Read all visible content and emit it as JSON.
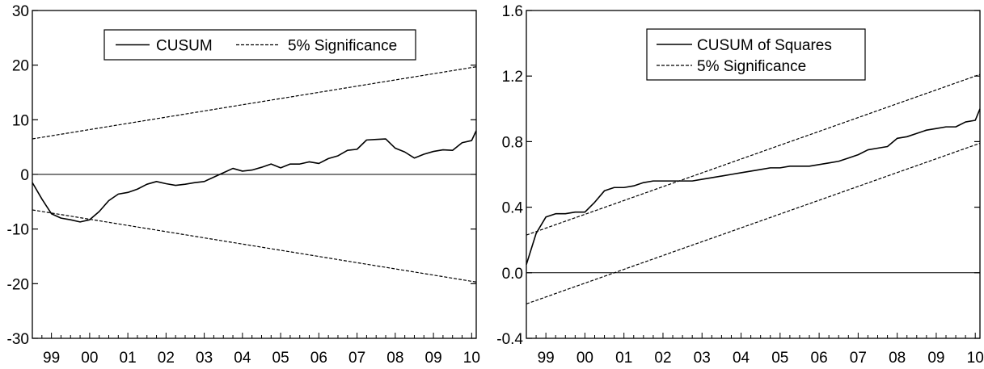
{
  "chart_data": [
    {
      "type": "line",
      "title": "",
      "xlabel": "",
      "ylabel": "",
      "x_range": [
        1998.5,
        2010.12
      ],
      "ylim": [
        -30,
        30
      ],
      "y_ticks": [
        30,
        20,
        10,
        0,
        -10,
        -20,
        -30
      ],
      "y_tick_labels": [
        "30",
        "20",
        "10",
        "0",
        "-10",
        "-20",
        "-30"
      ],
      "x_ticks": [
        1999,
        2000,
        2001,
        2002,
        2003,
        2004,
        2005,
        2006,
        2007,
        2008,
        2009,
        2010
      ],
      "x_tick_labels": [
        "99",
        "00",
        "01",
        "02",
        "03",
        "04",
        "05",
        "06",
        "07",
        "08",
        "09",
        "10"
      ],
      "zero_line": true,
      "grid": false,
      "legend_position": "top-center",
      "legend": [
        {
          "label": "CUSUM",
          "style": "solid"
        },
        {
          "label": "5% Significance",
          "style": "dashed"
        }
      ],
      "series": [
        {
          "name": "CUSUM",
          "style": "solid",
          "x": [
            1998.5,
            1998.75,
            1999.0,
            1999.25,
            1999.5,
            1999.75,
            2000.0,
            2000.25,
            2000.5,
            2000.75,
            2001.0,
            2001.25,
            2001.5,
            2001.75,
            2002.0,
            2002.25,
            2002.5,
            2002.75,
            2003.0,
            2003.25,
            2003.5,
            2003.75,
            2004.0,
            2004.25,
            2004.5,
            2004.75,
            2005.0,
            2005.25,
            2005.5,
            2005.75,
            2006.0,
            2006.25,
            2006.5,
            2006.75,
            2007.0,
            2007.25,
            2007.5,
            2007.75,
            2008.0,
            2008.25,
            2008.5,
            2008.75,
            2009.0,
            2009.25,
            2009.5,
            2009.75,
            2010.0,
            2010.12
          ],
          "values": [
            -1.5,
            -4.5,
            -7.2,
            -8.0,
            -8.3,
            -8.7,
            -8.3,
            -6.8,
            -4.8,
            -3.6,
            -3.3,
            -2.7,
            -1.8,
            -1.3,
            -1.7,
            -2.0,
            -1.8,
            -1.5,
            -1.3,
            -0.5,
            0.3,
            1.1,
            0.6,
            0.8,
            1.3,
            1.9,
            1.2,
            1.9,
            1.9,
            2.3,
            2.0,
            2.9,
            3.4,
            4.4,
            4.6,
            6.3,
            6.4,
            6.5,
            4.8,
            4.1,
            3.0,
            3.7,
            4.2,
            4.5,
            4.4,
            5.8,
            6.2,
            8.0
          ]
        },
        {
          "name": "5% Significance",
          "style": "dashed",
          "x": [
            1998.5,
            2010.12
          ],
          "values": [
            6.5,
            19.7
          ]
        },
        {
          "name": "5% Significance",
          "style": "dashed",
          "x": [
            1998.5,
            2010.12
          ],
          "values": [
            -6.5,
            -19.7
          ]
        }
      ]
    },
    {
      "type": "line",
      "title": "",
      "xlabel": "",
      "ylabel": "",
      "x_range": [
        1998.5,
        2010.12
      ],
      "ylim": [
        -0.4,
        1.6
      ],
      "y_ticks": [
        1.6,
        1.2,
        0.8,
        0.4,
        0.0,
        -0.4
      ],
      "y_tick_labels": [
        "1.6",
        "1.2",
        "0.8",
        "0.4",
        "0.0",
        "-0.4"
      ],
      "x_ticks": [
        1999,
        2000,
        2001,
        2002,
        2003,
        2004,
        2005,
        2006,
        2007,
        2008,
        2009,
        2010
      ],
      "x_tick_labels": [
        "99",
        "00",
        "01",
        "02",
        "03",
        "04",
        "05",
        "06",
        "07",
        "08",
        "09",
        "10"
      ],
      "zero_line": true,
      "grid": false,
      "legend_position": "top-center",
      "legend": [
        {
          "label": "CUSUM of Squares",
          "style": "solid"
        },
        {
          "label": "5% Significance",
          "style": "dashed"
        }
      ],
      "series": [
        {
          "name": "CUSUM of Squares",
          "style": "solid",
          "x": [
            1998.5,
            1998.75,
            1999.0,
            1999.25,
            1999.5,
            1999.75,
            2000.0,
            2000.25,
            2000.5,
            2000.75,
            2001.0,
            2001.25,
            2001.5,
            2001.75,
            2002.0,
            2002.25,
            2002.5,
            2002.75,
            2003.0,
            2003.25,
            2003.5,
            2003.75,
            2004.0,
            2004.25,
            2004.5,
            2004.75,
            2005.0,
            2005.25,
            2005.5,
            2005.75,
            2006.0,
            2006.25,
            2006.5,
            2006.75,
            2007.0,
            2007.25,
            2007.5,
            2007.75,
            2008.0,
            2008.25,
            2008.5,
            2008.75,
            2009.0,
            2009.25,
            2009.5,
            2009.75,
            2010.0,
            2010.12
          ],
          "values": [
            0.05,
            0.24,
            0.34,
            0.36,
            0.36,
            0.37,
            0.37,
            0.43,
            0.5,
            0.52,
            0.52,
            0.53,
            0.55,
            0.56,
            0.56,
            0.56,
            0.56,
            0.56,
            0.57,
            0.58,
            0.59,
            0.6,
            0.61,
            0.62,
            0.63,
            0.64,
            0.64,
            0.65,
            0.65,
            0.65,
            0.66,
            0.67,
            0.68,
            0.7,
            0.72,
            0.75,
            0.76,
            0.77,
            0.82,
            0.83,
            0.85,
            0.87,
            0.88,
            0.89,
            0.89,
            0.92,
            0.93,
            1.0
          ]
        },
        {
          "name": "5% Significance",
          "style": "dashed",
          "x": [
            1998.5,
            2010.12
          ],
          "values": [
            0.23,
            1.21
          ]
        },
        {
          "name": "5% Significance",
          "style": "dashed",
          "x": [
            1998.5,
            2010.12
          ],
          "values": [
            -0.19,
            0.79
          ]
        }
      ]
    }
  ]
}
